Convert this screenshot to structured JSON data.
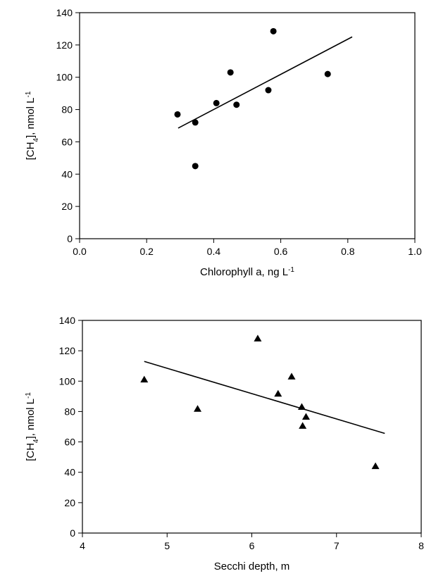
{
  "chart_data": [
    {
      "type": "scatter",
      "marker": "circle",
      "color": "#000000",
      "xlabel_parts": [
        "Chlorophyll a, ng L",
        "-1"
      ],
      "ylabel_parts": [
        "[CH",
        "4",
        "], nmol L",
        "-1"
      ],
      "x": [
        0.292,
        0.345,
        0.345,
        0.408,
        0.45,
        0.468,
        0.563,
        0.578,
        0.74
      ],
      "y": [
        77,
        72,
        45,
        84,
        103,
        83,
        92,
        128.5,
        102
      ],
      "fit": {
        "x": [
          0.294,
          0.813
        ],
        "y": [
          68.5,
          125
        ]
      },
      "xlim": [
        0,
        1
      ],
      "xticks": [
        {
          "value": 0,
          "label": "0.0"
        },
        0.2,
        0.4,
        0.6,
        0.8,
        {
          "value": 1,
          "label": "1.0"
        }
      ],
      "ylim": [
        0,
        140
      ],
      "yticks": [
        0,
        20,
        40,
        60,
        80,
        100,
        120,
        140
      ]
    },
    {
      "type": "scatter",
      "marker": "triangle",
      "color": "#000000",
      "xlabel_parts": [
        "Secchi depth, m"
      ],
      "ylabel_parts": [
        "[CH",
        "4",
        "], nmol L",
        "-1"
      ],
      "x": [
        4.73,
        5.36,
        6.07,
        6.31,
        6.47,
        6.59,
        6.6,
        6.64,
        7.46
      ],
      "y": [
        101,
        81.7,
        128,
        91.7,
        103,
        83,
        70.5,
        76.5,
        44
      ],
      "fit": {
        "x": [
          4.73,
          7.57
        ],
        "y": [
          113,
          65.6
        ]
      },
      "xlim": [
        4,
        8
      ],
      "xticks": [
        4,
        5,
        6,
        7,
        8
      ],
      "ylim": [
        0,
        140
      ],
      "yticks": [
        0,
        20,
        40,
        60,
        80,
        100,
        120,
        140
      ]
    }
  ]
}
